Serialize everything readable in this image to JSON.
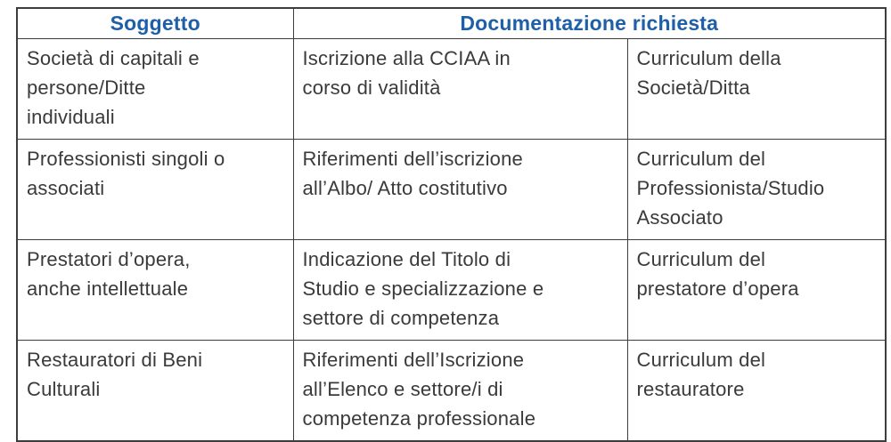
{
  "colors": {
    "header_text": "#1f5fa8",
    "body_text": "#3a3a3a",
    "border": "#3d3d3d",
    "background": "#ffffff"
  },
  "table": {
    "headers": {
      "col_soggetto": "Soggetto",
      "col_documentazione": "Documentazione richiesta"
    },
    "rows": [
      {
        "soggetto": "Società di capitali e\npersone/Ditte\nindividuali",
        "doc_primaria": "Iscrizione alla CCIAA in\ncorso di validità",
        "doc_curriculum": "Curriculum della\nSocietà/Ditta"
      },
      {
        "soggetto": "Professionisti singoli o\nassociati",
        "doc_primaria": "Riferimenti dell’iscrizione\nall’Albo/ Atto costitutivo",
        "doc_curriculum": "Curriculum del\nProfessionista/Studio\nAssociato"
      },
      {
        "soggetto": "Prestatori d’opera,\nanche intellettuale",
        "doc_primaria": "Indicazione del Titolo di\nStudio e specializzazione e\nsettore di competenza",
        "doc_curriculum": "Curriculum del\nprestatore d’opera"
      },
      {
        "soggetto": "Restauratori di Beni\nCulturali",
        "doc_primaria": "Riferimenti dell’Iscrizione\nall’Elenco e settore/i di\ncompetenza professionale",
        "doc_curriculum": "Curriculum del\nrestauratore"
      }
    ]
  }
}
